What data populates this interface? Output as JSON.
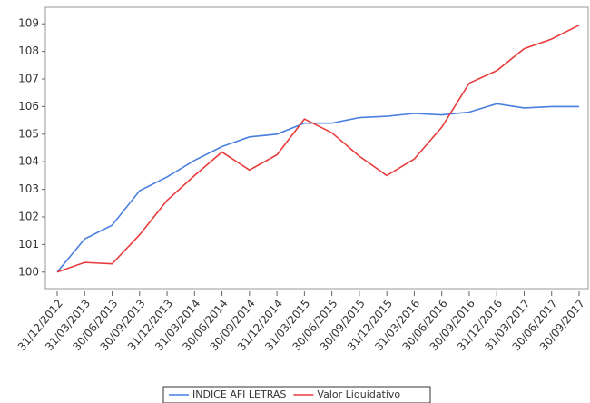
{
  "chart_data": {
    "type": "line",
    "categories": [
      "31/12/2012",
      "31/03/2013",
      "30/06/2013",
      "30/09/2013",
      "31/12/2013",
      "31/03/2014",
      "30/06/2014",
      "30/09/2014",
      "31/12/2014",
      "31/03/2015",
      "30/06/2015",
      "30/09/2015",
      "31/12/2015",
      "31/03/2016",
      "30/06/2016",
      "30/09/2016",
      "31/12/2016",
      "31/03/2017",
      "30/06/2017",
      "30/09/2017"
    ],
    "series": [
      {
        "name": "INDICE AFI LETRAS",
        "color": "#4a7fe0",
        "values": [
          100,
          101.2,
          101.7,
          102.95,
          103.45,
          104.05,
          104.55,
          104.9,
          105.0,
          105.4,
          105.4,
          105.6,
          105.65,
          105.75,
          105.7,
          105.8,
          106.1,
          105.95,
          106.0,
          106.0
        ]
      },
      {
        "name": "Valor Liquidativo",
        "color": "#e83c3c",
        "values": [
          100,
          100.35,
          100.3,
          101.35,
          102.6,
          103.5,
          104.35,
          103.7,
          104.25,
          105.55,
          105.05,
          104.2,
          103.5,
          104.1,
          105.25,
          106.85,
          107.3,
          108.1,
          108.45,
          108.95
        ]
      }
    ],
    "ylim": [
      99.4,
      109.6
    ],
    "yticks": [
      100,
      101,
      102,
      103,
      104,
      105,
      106,
      107,
      108,
      109
    ],
    "legend": "bottom"
  }
}
